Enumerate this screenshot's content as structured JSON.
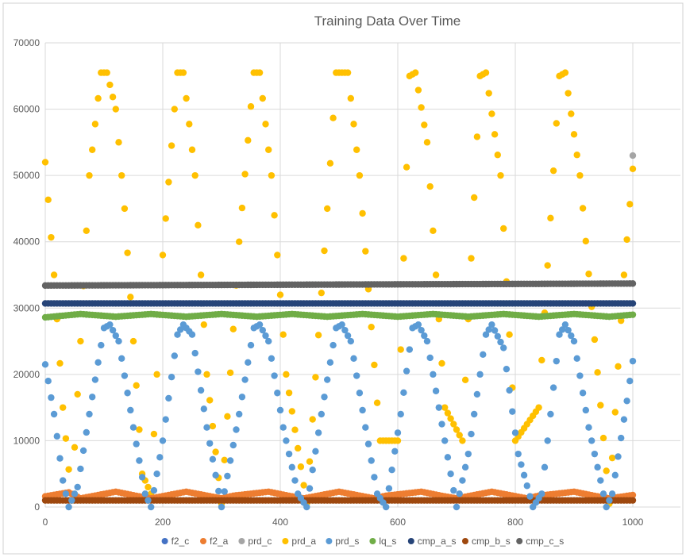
{
  "chart_data": {
    "type": "scatter",
    "title": "Training Data Over Time",
    "xlabel": "",
    "ylabel": "",
    "xlim": [
      0,
      1000
    ],
    "ylim": [
      0,
      70000
    ],
    "x_ticks": [
      "0",
      "200",
      "400",
      "600",
      "800",
      "1000"
    ],
    "y_ticks": [
      "0",
      "10000",
      "20000",
      "30000",
      "40000",
      "50000",
      "60000",
      "70000"
    ],
    "grid": "vertical and horizontal major gridlines",
    "legend_position": "bottom",
    "series": [
      {
        "name": "f2_c",
        "color": "#4472c4",
        "x": [],
        "y": []
      },
      {
        "name": "f2_a",
        "color": "#ed7d31",
        "x": [
          0,
          40,
          60,
          120,
          160,
          180,
          240,
          300,
          320,
          380,
          420,
          440,
          500,
          560,
          580,
          640,
          680,
          700,
          760,
          820,
          840,
          900,
          940,
          960,
          1000
        ],
        "y": [
          1600,
          2200,
          1300,
          2300,
          1600,
          1300,
          2300,
          1300,
          1700,
          2300,
          1600,
          1300,
          2300,
          1300,
          1700,
          2300,
          1600,
          1300,
          2300,
          1300,
          1700,
          2300,
          1600,
          1300,
          1800
        ]
      },
      {
        "name": "prd_c",
        "color": "#a5a5a5",
        "x": [
          1000
        ],
        "y": [
          53000
        ]
      },
      {
        "name": "prd_a",
        "color": "#ffc000",
        "x": [
          0,
          15,
          30,
          45,
          60,
          75,
          95,
          105,
          120,
          135,
          150,
          165,
          180,
          200,
          225,
          235,
          255,
          275,
          300,
          330,
          355,
          365,
          385,
          410,
          445,
          480,
          495,
          515,
          535,
          570,
          600,
          620,
          630,
          650,
          680,
          710,
          740,
          750,
          775,
          800,
          840,
          875,
          885,
          910,
          960,
          985,
          1000
        ],
        "y": [
          52000,
          35000,
          15000,
          1000,
          25000,
          50000,
          65500,
          65500,
          60000,
          45000,
          25000,
          5000,
          2000,
          38000,
          65500,
          65500,
          50000,
          20000,
          500,
          40000,
          65500,
          65500,
          50000,
          20000,
          500,
          45000,
          65500,
          65500,
          50000,
          10000,
          10000,
          65000,
          65500,
          55000,
          15000,
          10000,
          65000,
          65500,
          50000,
          10000,
          15000,
          65000,
          65500,
          50000,
          500,
          35000,
          51000
        ]
      },
      {
        "name": "prd_s",
        "color": "#5b9bd5",
        "x": [
          0,
          15,
          30,
          40,
          55,
          75,
          100,
          110,
          125,
          150,
          170,
          180,
          200,
          225,
          235,
          250,
          275,
          300,
          330,
          355,
          365,
          380,
          405,
          430,
          445,
          470,
          495,
          505,
          520,
          545,
          565,
          580,
          605,
          625,
          635,
          650,
          680,
          700,
          720,
          750,
          760,
          780,
          805,
          830,
          845,
          875,
          885,
          900,
          925,
          955,
          965,
          990,
          1000
        ],
        "y": [
          21500,
          14000,
          4000,
          0,
          3000,
          14000,
          27000,
          27500,
          25000,
          12000,
          2000,
          0,
          10000,
          26000,
          27500,
          26000,
          12000,
          0,
          14000,
          27000,
          27500,
          25000,
          12000,
          2000,
          0,
          14000,
          27000,
          27500,
          25000,
          12000,
          2000,
          0,
          14000,
          27000,
          27500,
          25000,
          10000,
          0,
          8000,
          26000,
          27500,
          24000,
          8000,
          0,
          2000,
          26000,
          27500,
          25000,
          12000,
          0,
          2000,
          16000,
          22000
        ]
      },
      {
        "name": "lq_s",
        "color": "#70ad47",
        "x": [
          0,
          60,
          120,
          180,
          240,
          300,
          360,
          420,
          480,
          540,
          600,
          660,
          720,
          780,
          840,
          900,
          960,
          1000
        ],
        "y": [
          28600,
          29100,
          28700,
          29100,
          28700,
          29100,
          28700,
          29100,
          28700,
          29100,
          28700,
          29100,
          28700,
          29100,
          28700,
          29100,
          28700,
          29000
        ]
      },
      {
        "name": "cmp_a_s",
        "color": "#264478",
        "x": [
          0,
          1000
        ],
        "y": [
          30700,
          30700
        ]
      },
      {
        "name": "cmp_b_s",
        "color": "#9e480e",
        "x": [
          0,
          1000
        ],
        "y": [
          1000,
          1000
        ]
      },
      {
        "name": "cmp_c_s",
        "color": "#636363",
        "x": [
          0,
          1000
        ],
        "y": [
          33400,
          33700
        ]
      }
    ]
  }
}
